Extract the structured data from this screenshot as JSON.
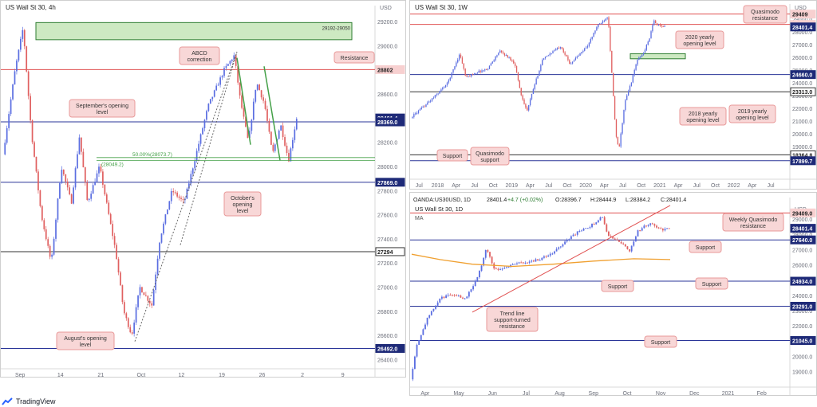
{
  "branding": {
    "name": "TradingView"
  },
  "colors": {
    "candle_up": "#5b6ee1",
    "candle_down": "#e06060",
    "blue_level": "#2a3598",
    "red_level": "#e05050",
    "green_zone": "#b8e0a8",
    "green_zone_border": "#2e7d32",
    "callout_bg": "#f8d7d7",
    "callout_border": "#e89a9a",
    "ma": "#f0a030",
    "trend": "#e05050",
    "fib": "#43a047"
  },
  "chart_data": [
    {
      "id": "h4",
      "type": "candlestick",
      "title": "US Wall St 30, 4h",
      "currency": "USD",
      "ylim": [
        26350,
        29280
      ],
      "x_ticks": [
        "Sep",
        "14",
        "21",
        "Oct",
        "12",
        "19",
        "26",
        "2",
        "9"
      ],
      "y_ticks": [
        "29200.0",
        "29000.0",
        "28800.0",
        "28600.0",
        "28400.0",
        "28200.0",
        "28000.0",
        "27800.0",
        "27600.0",
        "27400.0",
        "27200.0",
        "27000.0",
        "26800.0",
        "26600.0",
        "26400.0"
      ],
      "levels": [
        {
          "value": 28401.4,
          "label": "28401.4",
          "kind": "price"
        },
        {
          "value": 28369.0,
          "label": "28369.0",
          "kind": "blue"
        },
        {
          "value": 27869.0,
          "label": "27869.0",
          "kind": "blue"
        },
        {
          "value": 26492.0,
          "label": "26492.0",
          "kind": "blue"
        },
        {
          "value": 28802,
          "label": "28802",
          "kind": "red"
        },
        {
          "value": 27294,
          "label": "27294",
          "kind": "black"
        }
      ],
      "zone": {
        "low": 29050,
        "high": 29192,
        "label": "29192-29050"
      },
      "fib": [
        {
          "value": 28073.7,
          "label": "50.00%(28073.7)"
        },
        {
          "value": 28049.2,
          "label": "(28049.2)"
        }
      ],
      "annotations": [
        {
          "text": "ABCD correction"
        },
        {
          "text": "Resistance"
        },
        {
          "text": "September's opening level"
        },
        {
          "text": "October's opening level"
        },
        {
          "text": "August's opening level"
        }
      ],
      "series_path": [
        [
          0,
          28100
        ],
        [
          6,
          28800
        ],
        [
          10,
          29150
        ],
        [
          14,
          28300
        ],
        [
          19,
          27600
        ],
        [
          24,
          27200
        ],
        [
          29,
          28000
        ],
        [
          34,
          27700
        ],
        [
          38,
          28250
        ],
        [
          42,
          27700
        ],
        [
          48,
          28000
        ],
        [
          56,
          27300
        ],
        [
          60,
          26800
        ],
        [
          64,
          26600
        ],
        [
          68,
          27000
        ],
        [
          74,
          26850
        ],
        [
          78,
          27400
        ],
        [
          84,
          27800
        ],
        [
          90,
          27700
        ],
        [
          96,
          28100
        ],
        [
          102,
          28500
        ],
        [
          110,
          28800
        ],
        [
          115,
          28920
        ],
        [
          118,
          28550
        ],
        [
          122,
          28200
        ],
        [
          126,
          28700
        ],
        [
          130,
          28520
        ],
        [
          134,
          28100
        ],
        [
          138,
          28350
        ],
        [
          142,
          28050
        ],
        [
          146,
          28401
        ]
      ]
    },
    {
      "id": "w1",
      "type": "candlestick",
      "title": "US Wall St 30, 1W",
      "currency": "USD",
      "ylim": [
        16700,
        29700
      ],
      "x_ticks": [
        "Jul",
        "2018",
        "Apr",
        "Jul",
        "Oct",
        "2019",
        "Apr",
        "Jul",
        "Oct",
        "2020",
        "Apr",
        "Jul",
        "Oct",
        "2021",
        "Apr",
        "Jul",
        "Oct",
        "2022",
        "Apr",
        "Jul"
      ],
      "y_ticks": [
        "29000.0",
        "28000.0",
        "27000.0",
        "26000.0",
        "25000.0",
        "24000.0",
        "23000.0",
        "22000.0",
        "21000.0",
        "20000.0",
        "19000.0",
        "18000.0"
      ],
      "levels": [
        {
          "value": 29409,
          "label": "29409",
          "kind": "red"
        },
        {
          "value": 28595.0,
          "label": "28595.0",
          "kind": "red"
        },
        {
          "value": 28401.4,
          "label": "28401.4",
          "kind": "price"
        },
        {
          "value": 24660.0,
          "label": "24660.0",
          "kind": "blue"
        },
        {
          "value": 23313.0,
          "label": "23313.0",
          "kind": "black"
        },
        {
          "value": 18364.8,
          "label": "18364.8",
          "kind": "black"
        },
        {
          "value": 17899.7,
          "label": "17899.7",
          "kind": "blue"
        }
      ],
      "zone": {
        "low": 25900,
        "high": 26300,
        "label": ""
      },
      "annotations": [
        {
          "text": "Quasimodo resistance"
        },
        {
          "text": "2020 yearly opening level"
        },
        {
          "text": "2018 yearly opening level"
        },
        {
          "text": "2019 yearly opening level"
        },
        {
          "text": "Support"
        },
        {
          "text": "Quasimodo support"
        }
      ],
      "series_path": [
        [
          0,
          21300
        ],
        [
          8,
          22100
        ],
        [
          16,
          23000
        ],
        [
          24,
          24000
        ],
        [
          32,
          26300
        ],
        [
          36,
          24400
        ],
        [
          42,
          24800
        ],
        [
          50,
          25100
        ],
        [
          58,
          26500
        ],
        [
          64,
          26000
        ],
        [
          68,
          25500
        ],
        [
          72,
          23100
        ],
        [
          76,
          21800
        ],
        [
          80,
          23500
        ],
        [
          86,
          25800
        ],
        [
          92,
          26400
        ],
        [
          98,
          26900
        ],
        [
          104,
          25500
        ],
        [
          110,
          26200
        ],
        [
          116,
          27000
        ],
        [
          122,
          28500
        ],
        [
          126,
          28900
        ],
        [
          129,
          29300
        ],
        [
          131,
          25500
        ],
        [
          134,
          20000
        ],
        [
          136,
          18700
        ],
        [
          140,
          22500
        ],
        [
          144,
          24000
        ],
        [
          148,
          25800
        ],
        [
          152,
          26300
        ],
        [
          156,
          27500
        ],
        [
          159,
          28900
        ],
        [
          162,
          28500
        ],
        [
          166,
          28401
        ]
      ]
    },
    {
      "id": "d1",
      "type": "candlestick",
      "title": "US Wall St 30, 1D",
      "header": {
        "symbol": "OANDA:US30USD, 1D",
        "last": "28401.4",
        "change": "+4.7 (+0.02%)",
        "open": "O:28396.7",
        "high": "H:28444.9",
        "low": "L:28384.2",
        "close": "C:28401.4"
      },
      "indicator": "MA",
      "currency": "USD",
      "ylim": [
        18200,
        30000
      ],
      "x_ticks": [
        "Apr",
        "May",
        "Jun",
        "Jul",
        "Aug",
        "Sep",
        "Oct",
        "Nov",
        "Dec",
        "2021",
        "Feb"
      ],
      "y_ticks": [
        "29000.0",
        "28000.0",
        "27000.0",
        "26000.0",
        "25000.0",
        "24000.0",
        "23000.0",
        "22000.0",
        "21000.0",
        "20000.0",
        "19000.0"
      ],
      "levels": [
        {
          "value": 29409.0,
          "label": "29409.0",
          "kind": "red"
        },
        {
          "value": 28401.4,
          "label": "28401.4",
          "kind": "price"
        },
        {
          "value": 27640.0,
          "label": "27640.0",
          "kind": "blue"
        },
        {
          "value": 24934.0,
          "label": "24934.0",
          "kind": "blue"
        },
        {
          "value": 23291.0,
          "label": "23291.0",
          "kind": "blue"
        },
        {
          "value": 21045.0,
          "label": "21045.0",
          "kind": "blue"
        }
      ],
      "annotations": [
        {
          "text": "Weekly Quasimodo resistance"
        },
        {
          "text": "Support"
        },
        {
          "text": "Support"
        },
        {
          "text": "Support"
        },
        {
          "text": "Support"
        },
        {
          "text": "Trend line support-turned resistance"
        }
      ],
      "series_path": [
        [
          0,
          18500
        ],
        [
          3,
          20800
        ],
        [
          8,
          22500
        ],
        [
          14,
          23800
        ],
        [
          20,
          24100
        ],
        [
          26,
          23800
        ],
        [
          32,
          25200
        ],
        [
          36,
          27100
        ],
        [
          40,
          25700
        ],
        [
          44,
          25800
        ],
        [
          50,
          26100
        ],
        [
          56,
          26200
        ],
        [
          62,
          26400
        ],
        [
          68,
          26800
        ],
        [
          74,
          27600
        ],
        [
          80,
          28200
        ],
        [
          84,
          28400
        ],
        [
          88,
          28800
        ],
        [
          91,
          29200
        ],
        [
          94,
          27900
        ],
        [
          98,
          27600
        ],
        [
          101,
          27400
        ],
        [
          104,
          26900
        ],
        [
          108,
          28200
        ],
        [
          112,
          28600
        ],
        [
          115,
          28700
        ],
        [
          119,
          28300
        ],
        [
          123,
          28401
        ]
      ],
      "ma_path": [
        [
          0,
          26700
        ],
        [
          14,
          26350
        ],
        [
          30,
          26050
        ],
        [
          50,
          25900
        ],
        [
          70,
          26050
        ],
        [
          90,
          26250
        ],
        [
          110,
          26400
        ],
        [
          128,
          26350
        ]
      ]
    }
  ]
}
